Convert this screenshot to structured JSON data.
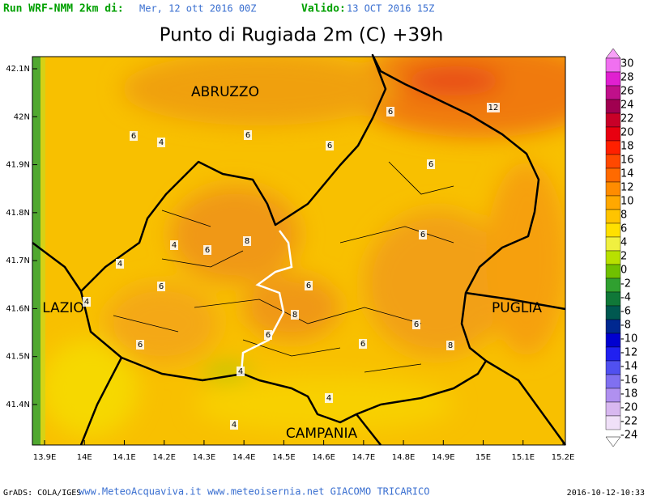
{
  "header": {
    "run_label": "Run WRF-NMM 2km di:",
    "run_date": "Mer, 12 ott 2016 00Z",
    "valid_label": "Valido:",
    "valid_date": "13 OCT 2016 15Z"
  },
  "title": "Punto di Rugiada 2m (C) +39h",
  "map": {
    "regions": [
      "ABRUZZO",
      "LAZIO",
      "PUGLIA",
      "CAMPANIA"
    ],
    "contour_labels": [
      "6",
      "4",
      "6",
      "6",
      "6",
      "12",
      "6",
      "4",
      "6",
      "8",
      "4",
      "6",
      "6",
      "4",
      "6",
      "8",
      "6",
      "6",
      "6",
      "6",
      "8",
      "4",
      "4",
      "4"
    ],
    "lat_ticks": [
      {
        "value": 42.1,
        "label": "42.1N"
      },
      {
        "value": 42,
        "label": "42N"
      },
      {
        "value": 41.9,
        "label": "41.9N"
      },
      {
        "value": 41.8,
        "label": "41.8N"
      },
      {
        "value": 41.7,
        "label": "41.7N"
      },
      {
        "value": 41.6,
        "label": "41.6N"
      },
      {
        "value": 41.5,
        "label": "41.5N"
      },
      {
        "value": 41.4,
        "label": "41.4N"
      }
    ],
    "lon_ticks": [
      {
        "value": 13.9,
        "label": "13.9E"
      },
      {
        "value": 14,
        "label": "14E"
      },
      {
        "value": 14.1,
        "label": "14.1E"
      },
      {
        "value": 14.2,
        "label": "14.2E"
      },
      {
        "value": 14.3,
        "label": "14.3E"
      },
      {
        "value": 14.4,
        "label": "14.4E"
      },
      {
        "value": 14.5,
        "label": "14.5E"
      },
      {
        "value": 14.6,
        "label": "14.6E"
      },
      {
        "value": 14.7,
        "label": "14.7E"
      },
      {
        "value": 14.8,
        "label": "14.8E"
      },
      {
        "value": 14.9,
        "label": "14.9E"
      },
      {
        "value": 15,
        "label": "15E"
      },
      {
        "value": 15.1,
        "label": "15.1E"
      },
      {
        "value": 15.2,
        "label": "15.2E"
      }
    ]
  },
  "colorbar": {
    "labels": [
      30,
      28,
      26,
      24,
      22,
      20,
      18,
      16,
      14,
      12,
      10,
      8,
      6,
      4,
      2,
      0,
      -2,
      -4,
      -6,
      -8,
      -10,
      -12,
      -14,
      -16,
      -18,
      -20,
      -22,
      -24
    ],
    "colors": [
      "#f070f0",
      "#e020d0",
      "#c0108a",
      "#a00050",
      "#c80028",
      "#e80010",
      "#ff2000",
      "#ff4800",
      "#ff6a00",
      "#ff8c00",
      "#ffa800",
      "#ffc400",
      "#ffe000",
      "#f0f040",
      "#b8e000",
      "#70c000",
      "#30a030",
      "#107838",
      "#005850",
      "#002890",
      "#0000d0",
      "#2020f0",
      "#5050f0",
      "#8070f0",
      "#b090f0",
      "#d8b8f0",
      "#f0e0f8"
    ]
  },
  "footer": {
    "left": "GrADS: COLA/IGES",
    "center": "www.MeteoAcquaviva.it www.meteoisernia.net GIACOMO TRICARICO",
    "right": "2016-10-12-10:33"
  }
}
